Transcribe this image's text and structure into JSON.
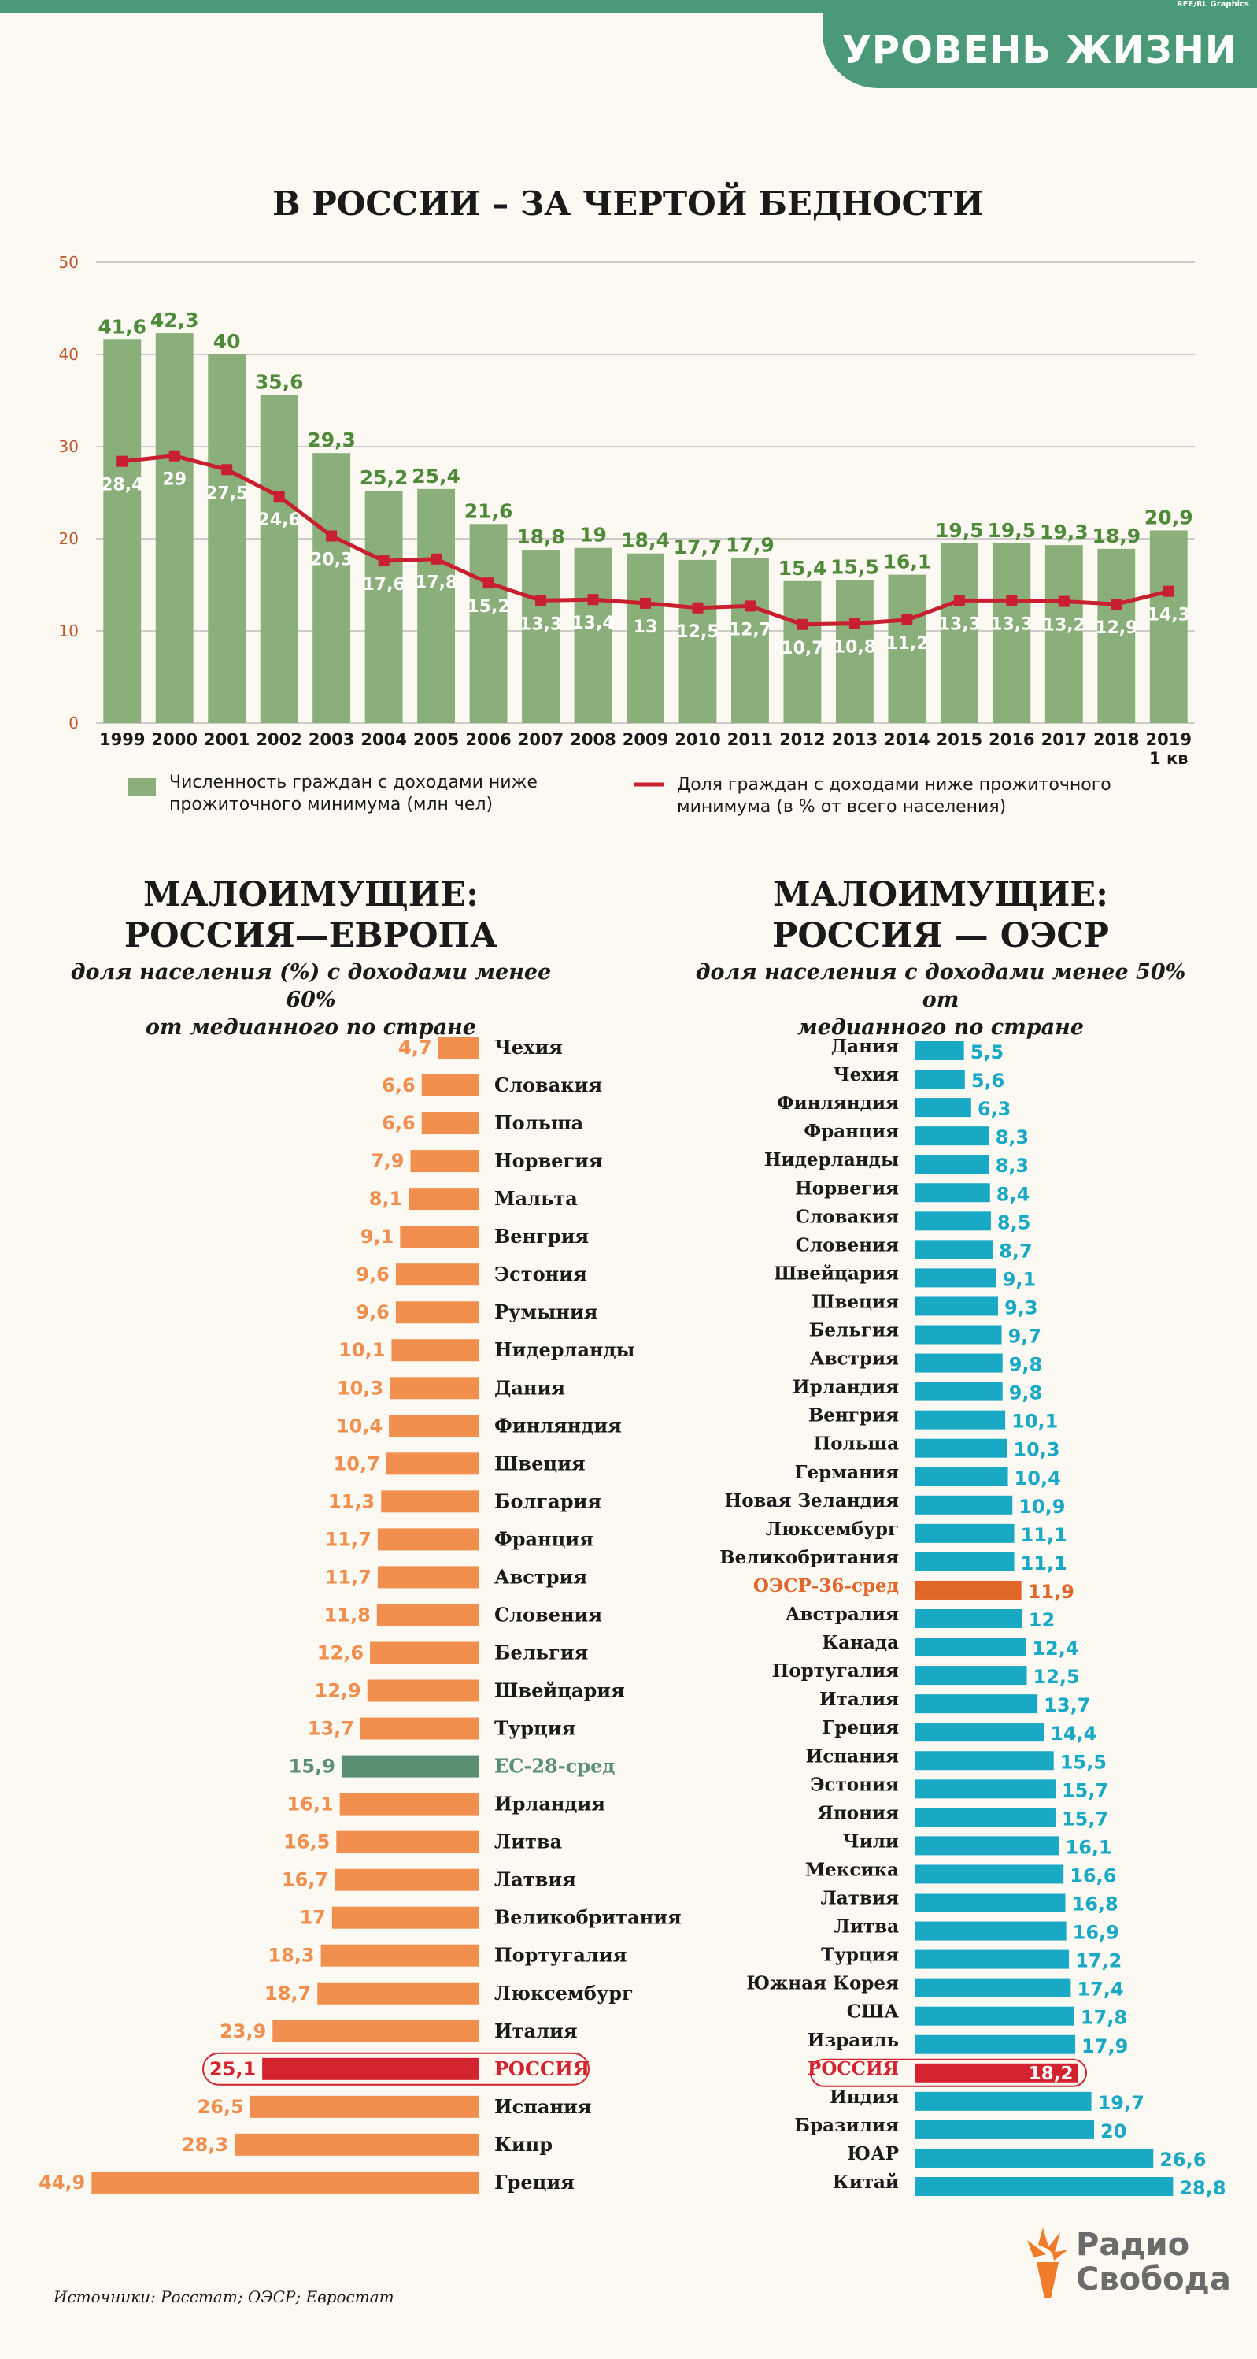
{
  "header": {
    "tag": "УРОВЕНЬ ЖИЗНИ",
    "credit": "RFE/RL Graphics"
  },
  "chart_data": [
    {
      "type": "bar",
      "title": "В РОССИИ – ЗА ЧЕРТОЙ БЕДНОСТИ",
      "categories": [
        "1999",
        "2000",
        "2001",
        "2002",
        "2003",
        "2004",
        "2005",
        "2006",
        "2007",
        "2008",
        "2009",
        "2010",
        "2011",
        "2012",
        "2013",
        "2014",
        "2015",
        "2016",
        "2017",
        "2018",
        "2019 1 кв"
      ],
      "category_lines": [
        [
          "1999"
        ],
        [
          "2000"
        ],
        [
          "2001"
        ],
        [
          "2002"
        ],
        [
          "2003"
        ],
        [
          "2004"
        ],
        [
          "2005"
        ],
        [
          "2006"
        ],
        [
          "2007"
        ],
        [
          "2008"
        ],
        [
          "2009"
        ],
        [
          "2010"
        ],
        [
          "2011"
        ],
        [
          "2012"
        ],
        [
          "2013"
        ],
        [
          "2014"
        ],
        [
          "2015"
        ],
        [
          "2016"
        ],
        [
          "2017"
        ],
        [
          "2018"
        ],
        [
          "2019",
          "1 кв"
        ]
      ],
      "series": [
        {
          "name": "Численность граждан с доходами ниже прожиточного минимума (млн чел)",
          "kind": "bar",
          "color": "#8aaf7a",
          "values": [
            41.6,
            42.3,
            40,
            35.6,
            29.3,
            25.2,
            25.4,
            21.6,
            18.8,
            19,
            18.4,
            17.7,
            17.9,
            15.4,
            15.5,
            16.1,
            19.5,
            19.5,
            19.3,
            18.9,
            20.9
          ],
          "labels": [
            "41,6",
            "42,3",
            "40",
            "35,6",
            "29,3",
            "25,2",
            "25,4",
            "21,6",
            "18,8",
            "19",
            "18,4",
            "17,7",
            "17,9",
            "15,4",
            "15,5",
            "16,1",
            "19,5",
            "19,5",
            "19,3",
            "18,9",
            "20,9"
          ]
        },
        {
          "name": "Доля граждан с доходами ниже прожиточного минимума (в % от всего населения)",
          "kind": "line",
          "color": "#c8202e",
          "values": [
            28.4,
            29,
            27.5,
            24.6,
            20.3,
            17.6,
            17.8,
            15.2,
            13.3,
            13.4,
            13,
            12.5,
            12.7,
            10.7,
            10.8,
            11.2,
            13.3,
            13.3,
            13.2,
            12.9,
            14.3
          ],
          "labels": [
            "28,4",
            "29",
            "27,5",
            "24,6",
            "20,3",
            "17,6",
            "17,8",
            "15,2",
            "13,3",
            "13,4",
            "13",
            "12,5",
            "12,7",
            "10,7",
            "10,8",
            "11,2",
            "13,3",
            "13,3",
            "13,2",
            "12,9",
            "14,3"
          ]
        }
      ],
      "ylim": [
        0,
        50
      ],
      "yticks": [
        0,
        10,
        20,
        30,
        40,
        50
      ],
      "legend": [
        {
          "lines": [
            "Численность граждан с доходами ниже",
            "прожиточного минимума (млн чел)"
          ],
          "color": "#8aaf7a"
        },
        {
          "lines": [
            "Доля граждан с доходами ниже прожиточного",
            "минимума (в % от всего населения)"
          ],
          "color": "#c8202e"
        }
      ],
      "grid": true
    },
    {
      "type": "bar",
      "orientation": "horizontal",
      "title": "МАЛОИМУЩИЕ: РОССИЯ—ЕВРОПА",
      "title_lines": [
        "МАЛОИМУЩИЕ:",
        "РОССИЯ—ЕВРОПА"
      ],
      "subtitle_lines": [
        "доля населения (%) с доходами менее 60%",
        "от медианного по стране"
      ],
      "categories": [
        "Чехия",
        "Словакия",
        "Польша",
        "Норвегия",
        "Мальта",
        "Венгрия",
        "Эстония",
        "Румыния",
        "Нидерланды",
        "Дания",
        "Финляндия",
        "Швеция",
        "Болгария",
        "Франция",
        "Австрия",
        "Словения",
        "Бельгия",
        "Швейцария",
        "Турция",
        "ЕС-28-сред",
        "Ирландия",
        "Литва",
        "Латвия",
        "Великобритания",
        "Португалия",
        "Люксембург",
        "Италия",
        "РОССИЯ",
        "Испания",
        "Кипр",
        "Греция"
      ],
      "values": [
        4.7,
        6.6,
        6.6,
        7.9,
        8.1,
        9.1,
        9.6,
        9.6,
        10.1,
        10.3,
        10.4,
        10.7,
        11.3,
        11.7,
        11.7,
        11.8,
        12.6,
        12.9,
        13.7,
        15.9,
        16.1,
        16.5,
        16.7,
        17,
        18.3,
        18.7,
        23.9,
        25.1,
        26.5,
        28.3,
        44.9
      ],
      "labels": [
        "4,7",
        "6,6",
        "6,6",
        "7,9",
        "8,1",
        "9,1",
        "9,6",
        "9,6",
        "10,1",
        "10,3",
        "10,4",
        "10,7",
        "11,3",
        "11,7",
        "11,7",
        "11,8",
        "12,6",
        "12,9",
        "13,7",
        "15,9",
        "16,1",
        "16,5",
        "16,7",
        "17",
        "18,3",
        "18,7",
        "23,9",
        "25,1",
        "26,5",
        "28,3",
        "44,9"
      ],
      "colors": {
        "default": "#f08f4e",
        "average": "#5a8f72",
        "russia": "#d2232f",
        "highlight_outline": "#d2232f"
      },
      "average_category": "ЕС-28-сред",
      "highlight_category": "РОССИЯ"
    },
    {
      "type": "bar",
      "orientation": "horizontal",
      "title": "МАЛОИМУЩИЕ: РОССИЯ — ОЭСР",
      "title_lines": [
        "МАЛОИМУЩИЕ:",
        "РОССИЯ — ОЭСР"
      ],
      "subtitle_lines": [
        "доля населения с доходами менее 50% от",
        "медианного по стране"
      ],
      "categories": [
        "Дания",
        "Чехия",
        "Финляндия",
        "Франция",
        "Нидерланды",
        "Норвегия",
        "Словакия",
        "Словения",
        "Швейцария",
        "Швеция",
        "Бельгия",
        "Австрия",
        "Ирландия",
        "Венгрия",
        "Польша",
        "Германия",
        "Новая Зеландия",
        "Люксембург",
        "Великобритания",
        "ОЭСР-36-сред",
        "Австралия",
        "Канада",
        "Португалия",
        "Италия",
        "Греция",
        "Испания",
        "Эстония",
        "Япония",
        "Чили",
        "Мексика",
        "Латвия",
        "Литва",
        "Турция",
        "Южная Корея",
        "США",
        "Израиль",
        "РОССИЯ",
        "Индия",
        "Бразилия",
        "ЮАР",
        "Китай"
      ],
      "values": [
        5.5,
        5.6,
        6.3,
        8.3,
        8.3,
        8.4,
        8.5,
        8.7,
        9.1,
        9.3,
        9.7,
        9.8,
        9.8,
        10.1,
        10.3,
        10.4,
        10.9,
        11.1,
        11.1,
        11.9,
        12,
        12.4,
        12.5,
        13.7,
        14.4,
        15.5,
        15.7,
        15.7,
        16.1,
        16.6,
        16.8,
        16.9,
        17.2,
        17.4,
        17.8,
        17.9,
        18.2,
        19.7,
        20,
        26.6,
        28.8
      ],
      "labels": [
        "5,5",
        "5,6",
        "6,3",
        "8,3",
        "8,3",
        "8,4",
        "8,5",
        "8,7",
        "9,1",
        "9,3",
        "9,7",
        "9,8",
        "9,8",
        "10,1",
        "10,3",
        "10,4",
        "10,9",
        "11,1",
        "11,1",
        "11,9",
        "12",
        "12,4",
        "12,5",
        "13,7",
        "14,4",
        "15,5",
        "15,7",
        "15,7",
        "16,1",
        "16,6",
        "16,8",
        "16,9",
        "17,2",
        "17,4",
        "17,8",
        "17,9",
        "18,2",
        "19,7",
        "20",
        "26,6",
        "28,8"
      ],
      "colors": {
        "default": "#1aa9c4",
        "average": "#e0662a",
        "russia": "#d2232f",
        "highlight_outline": "#d2232f"
      },
      "average_category": "ОЭСР-36-сред",
      "highlight_category": "РОССИЯ"
    }
  ],
  "footer": {
    "source": "Источники: Росстат; ОЭСР; Евростат",
    "logo_line1": "Радио",
    "logo_line2": "Свобода"
  }
}
